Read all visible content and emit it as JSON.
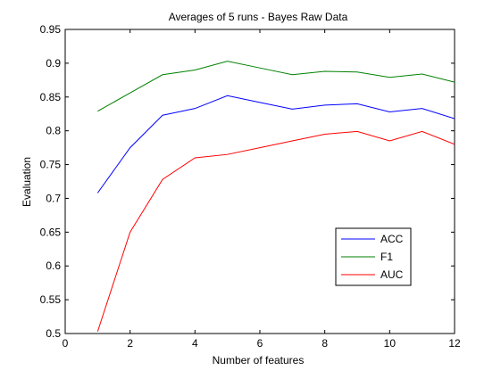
{
  "chart_data": {
    "type": "line",
    "title": "Averages of 5 runs - Bayes Raw Data",
    "xlabel": "Number of features",
    "ylabel": "Evaluation",
    "xlim": [
      0,
      12
    ],
    "ylim": [
      0.5,
      0.95
    ],
    "xticks": [
      0,
      2,
      4,
      6,
      8,
      10,
      12
    ],
    "xtick_labels": [
      "0",
      "2",
      "4",
      "6",
      "8",
      "10",
      "12"
    ],
    "yticks": [
      0.5,
      0.55,
      0.6,
      0.65,
      0.7,
      0.75,
      0.8,
      0.85,
      0.9,
      0.95
    ],
    "ytick_labels": [
      "0.5",
      "0.55",
      "0.6",
      "0.65",
      "0.7",
      "0.75",
      "0.8",
      "0.85",
      "0.9",
      "0.95"
    ],
    "grid": false,
    "legend_position": "lower-right",
    "x": [
      1,
      2,
      3,
      4,
      5,
      6,
      7,
      8,
      9,
      10,
      11,
      12
    ],
    "series": [
      {
        "name": "ACC",
        "color": "#0000ff",
        "values": [
          0.708,
          0.775,
          0.823,
          0.833,
          0.852,
          0.842,
          0.832,
          0.838,
          0.84,
          0.828,
          0.833,
          0.818
        ]
      },
      {
        "name": "F1",
        "color": "#008000",
        "values": [
          0.829,
          0.856,
          0.883,
          0.89,
          0.903,
          0.893,
          0.883,
          0.888,
          0.887,
          0.879,
          0.884,
          0.872
        ]
      },
      {
        "name": "AUC",
        "color": "#ff0000",
        "values": [
          0.503,
          0.65,
          0.728,
          0.76,
          0.765,
          0.775,
          0.785,
          0.795,
          0.799,
          0.785,
          0.799,
          0.78
        ]
      }
    ]
  }
}
